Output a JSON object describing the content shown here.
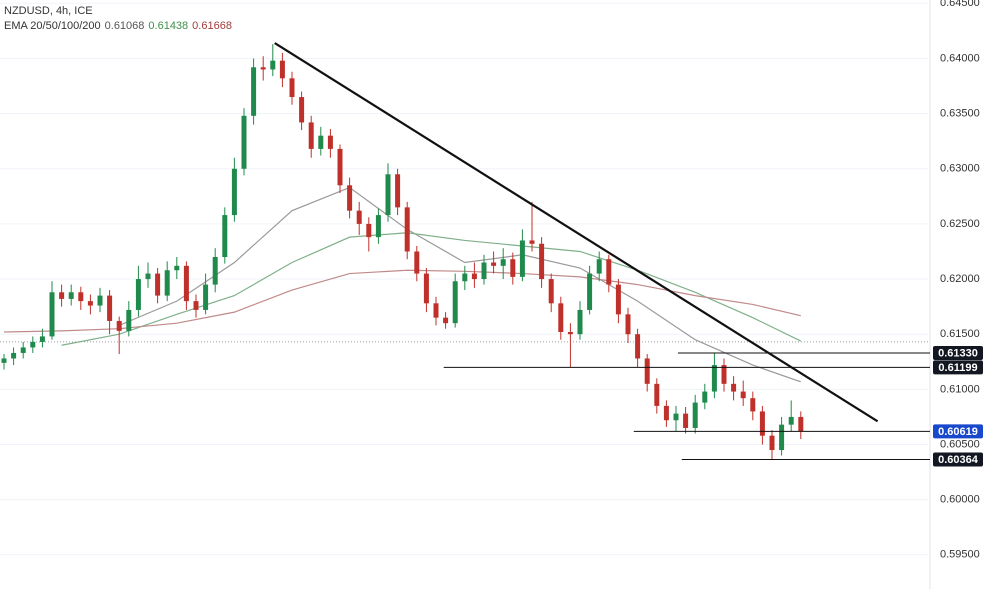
{
  "chart_data": {
    "type": "candlestick",
    "title": "NZDUSD, 4h, ICE",
    "ema_label": "EMA 20/50/100/200",
    "ema_values": [
      {
        "value": 0.61068,
        "label": "0.61068",
        "color": "#555555"
      },
      {
        "value": 0.61438,
        "label": "0.61438",
        "color": "#3f8f4a"
      },
      {
        "value": 0.61668,
        "label": "0.61668",
        "color": "#a03c3c"
      }
    ],
    "up_color": "#1f8a4c",
    "down_color": "#c0302b",
    "open": [
      0.6124,
      0.6128,
      0.6133,
      0.6138,
      0.6143,
      0.6148,
      0.6188,
      0.6182,
      0.6188,
      0.618,
      0.6176,
      0.6185,
      0.6162,
      0.6153,
      0.6172,
      0.62,
      0.6205,
      0.6185,
      0.6208,
      0.6212,
      0.618,
      0.6172,
      0.6195,
      0.622,
      0.6258,
      0.63,
      0.6348,
      0.6392,
      0.639,
      0.6398,
      0.6382,
      0.6365,
      0.6342,
      0.6318,
      0.633,
      0.6318,
      0.6285,
      0.6262,
      0.625,
      0.6238,
      0.6258,
      0.6295,
      0.6265,
      0.6225,
      0.6205,
      0.6178,
      0.6165,
      0.616,
      0.6198,
      0.6205,
      0.62,
      0.6215,
      0.6212,
      0.6218,
      0.6202,
      0.6235,
      0.6232,
      0.62,
      0.6178,
      0.6152,
      0.615,
      0.6172,
      0.6205,
      0.6218,
      0.6195,
      0.6168,
      0.615,
      0.6128,
      0.6105,
      0.6085,
      0.6072,
      0.6078,
      0.6065,
      0.6088,
      0.6098,
      0.6122,
      0.6105,
      0.6098,
      0.6092,
      0.608,
      0.6058,
      0.6045,
      0.6068,
      0.6075
    ],
    "high": [
      0.6132,
      0.6138,
      0.6143,
      0.6148,
      0.6155,
      0.6198,
      0.6195,
      0.6195,
      0.6193,
      0.6186,
      0.6192,
      0.619,
      0.6166,
      0.618,
      0.6212,
      0.6215,
      0.621,
      0.6216,
      0.622,
      0.6216,
      0.6186,
      0.6205,
      0.6228,
      0.6265,
      0.631,
      0.6355,
      0.64,
      0.6402,
      0.6413,
      0.6405,
      0.6388,
      0.637,
      0.6348,
      0.6338,
      0.6336,
      0.6322,
      0.6292,
      0.627,
      0.6256,
      0.6264,
      0.6305,
      0.63,
      0.627,
      0.623,
      0.621,
      0.6184,
      0.617,
      0.6205,
      0.6212,
      0.6215,
      0.6222,
      0.6225,
      0.6228,
      0.6224,
      0.6245,
      0.627,
      0.6238,
      0.6205,
      0.6184,
      0.616,
      0.618,
      0.6212,
      0.6225,
      0.6222,
      0.62,
      0.6174,
      0.6155,
      0.6132,
      0.611,
      0.609,
      0.6085,
      0.6084,
      0.6095,
      0.6105,
      0.6133,
      0.6128,
      0.6112,
      0.6108,
      0.6098,
      0.6085,
      0.6063,
      0.6075,
      0.609,
      0.608
    ],
    "low": [
      0.6118,
      0.6122,
      0.6128,
      0.6133,
      0.6138,
      0.6145,
      0.6175,
      0.6176,
      0.6172,
      0.6168,
      0.617,
      0.615,
      0.6132,
      0.6148,
      0.6166,
      0.6192,
      0.6178,
      0.618,
      0.62,
      0.6172,
      0.6165,
      0.6168,
      0.6188,
      0.6214,
      0.6252,
      0.6294,
      0.634,
      0.638,
      0.6384,
      0.6374,
      0.6358,
      0.6335,
      0.631,
      0.6312,
      0.631,
      0.6278,
      0.6255,
      0.624,
      0.6225,
      0.6232,
      0.6252,
      0.6258,
      0.6218,
      0.6198,
      0.617,
      0.6158,
      0.6155,
      0.6156,
      0.619,
      0.6192,
      0.6195,
      0.6205,
      0.62,
      0.6195,
      0.6198,
      0.6225,
      0.6192,
      0.617,
      0.6145,
      0.612,
      0.6145,
      0.6168,
      0.6198,
      0.6188,
      0.616,
      0.6142,
      0.612,
      0.6098,
      0.6078,
      0.6066,
      0.6062,
      0.606,
      0.606,
      0.6082,
      0.6092,
      0.6098,
      0.609,
      0.6085,
      0.6072,
      0.605,
      0.6036,
      0.604,
      0.6062,
      0.6055
    ],
    "close": [
      0.6128,
      0.6133,
      0.6138,
      0.6143,
      0.6148,
      0.6188,
      0.6182,
      0.6188,
      0.618,
      0.6176,
      0.6185,
      0.6162,
      0.6153,
      0.6172,
      0.62,
      0.6205,
      0.6185,
      0.6208,
      0.6212,
      0.618,
      0.6172,
      0.6195,
      0.622,
      0.6258,
      0.63,
      0.6348,
      0.6392,
      0.639,
      0.6398,
      0.6382,
      0.6365,
      0.6342,
      0.6318,
      0.633,
      0.6318,
      0.6285,
      0.6262,
      0.625,
      0.6238,
      0.6258,
      0.6295,
      0.6265,
      0.6225,
      0.6205,
      0.6178,
      0.6165,
      0.616,
      0.6198,
      0.6205,
      0.62,
      0.6215,
      0.6212,
      0.6218,
      0.6202,
      0.6235,
      0.6232,
      0.62,
      0.6178,
      0.6152,
      0.615,
      0.6172,
      0.6205,
      0.6218,
      0.6195,
      0.6168,
      0.615,
      0.6128,
      0.6105,
      0.6085,
      0.6072,
      0.6078,
      0.6065,
      0.6088,
      0.6098,
      0.6122,
      0.6105,
      0.6098,
      0.6092,
      0.608,
      0.6058,
      0.6045,
      0.6068,
      0.6075,
      0.6062
    ],
    "ema_x": [
      0,
      6,
      12,
      18,
      24,
      30,
      36,
      42,
      48,
      54,
      60,
      66,
      72,
      78,
      83
    ],
    "series": [
      {
        "color": "#9a9a9a",
        "values": [
          null,
          null,
          0.6158,
          0.618,
          0.6215,
          0.6262,
          0.6283,
          0.6245,
          0.6215,
          0.6222,
          0.621,
          0.618,
          0.6145,
          0.6122,
          0.61068
        ]
      },
      {
        "color": "#7fb08a",
        "values": [
          null,
          0.614,
          0.615,
          0.6168,
          0.6185,
          0.6215,
          0.6238,
          0.6242,
          0.6235,
          0.623,
          0.6225,
          0.6208,
          0.6188,
          0.6165,
          0.61438
        ]
      },
      {
        "color": "#c08a8a",
        "values": [
          0.6152,
          0.6153,
          0.6155,
          0.616,
          0.617,
          0.619,
          0.6205,
          0.6208,
          0.6207,
          0.6205,
          0.6202,
          0.6195,
          0.6185,
          0.6177,
          0.61668
        ]
      }
    ],
    "trendline": {
      "x": [
        28.2,
        91.0
      ],
      "values": [
        0.6414,
        0.6071
      ]
    },
    "levels": [
      {
        "value": 0.6133,
        "label": "0.61330",
        "start": 70.2,
        "tag_color": "#131722"
      },
      {
        "value": 0.61199,
        "label": "0.61199",
        "start": 45.8,
        "tag_color": "#131722"
      },
      {
        "value": 0.60619,
        "label": "0.60619",
        "start": 65.6,
        "tag_color": "#1848cc"
      },
      {
        "value": 0.60364,
        "label": "0.60364",
        "start": 70.6,
        "tag_color": "#131722"
      }
    ],
    "dotted_level": 0.6143,
    "ylim": [
      0.5919,
      0.6453
    ],
    "yticks": [
      {
        "value": 0.595,
        "label": "0.59500"
      },
      {
        "value": 0.6,
        "label": "0.60000"
      },
      {
        "value": 0.605,
        "label": "0.60500"
      },
      {
        "value": 0.61,
        "label": "0.61000"
      },
      {
        "value": 0.615,
        "label": "0.61500"
      },
      {
        "value": 0.62,
        "label": "0.62000"
      },
      {
        "value": 0.625,
        "label": "0.62500"
      },
      {
        "value": 0.63,
        "label": "0.63000"
      },
      {
        "value": 0.635,
        "label": "0.63500"
      },
      {
        "value": 0.64,
        "label": "0.64000"
      },
      {
        "value": 0.645,
        "label": "0.64500"
      }
    ],
    "grid": true
  }
}
